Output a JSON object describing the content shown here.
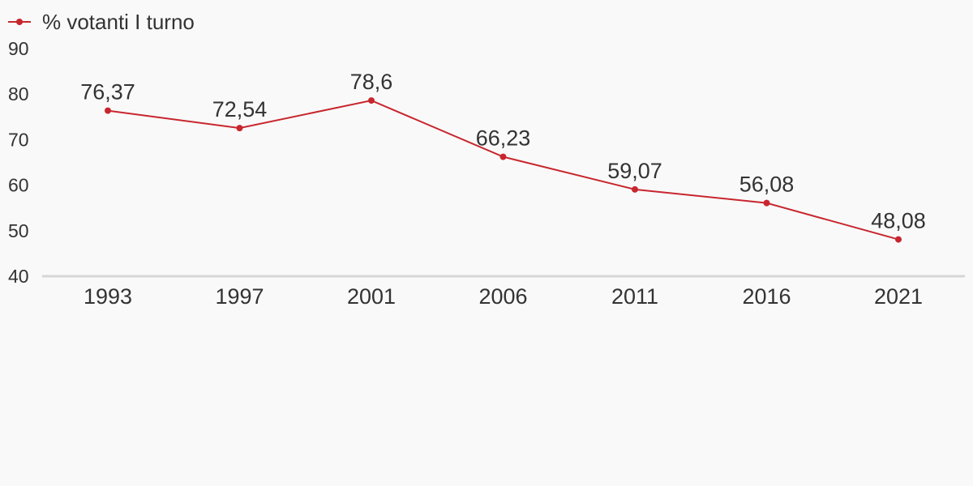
{
  "chart_data": {
    "type": "line",
    "title": "",
    "xlabel": "",
    "ylabel": "",
    "categories": [
      "1993",
      "1997",
      "2001",
      "2006",
      "2011",
      "2016",
      "2021"
    ],
    "series": [
      {
        "name": "% votanti I turno",
        "values": [
          76.37,
          72.54,
          78.6,
          66.23,
          59.07,
          56.08,
          48.08
        ],
        "labels": [
          "76,37",
          "72,54",
          "78,6",
          "66,23",
          "59,07",
          "56,08",
          "48,08"
        ]
      }
    ],
    "yticks": [
      "40",
      "50",
      "60",
      "70",
      "80",
      "90"
    ],
    "ylim": [
      40,
      90
    ],
    "grid": false,
    "legend_position": "top-left"
  },
  "colors": {
    "series": "#c8262e",
    "axis": "#d6d6d6",
    "background": "#f9f9f9",
    "text": "#333333"
  }
}
